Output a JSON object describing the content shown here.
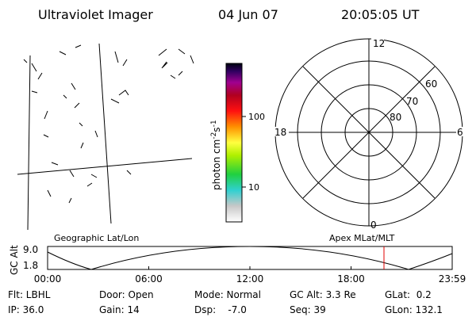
{
  "header": {
    "instrument": "Ultraviolet Imager",
    "date": "04 Jun 07",
    "time": "20:05:05 UT"
  },
  "colorbar": {
    "label": {
      "base": "photon cm",
      "exp1": "-2",
      "unit2": "s",
      "exp2": "-1"
    },
    "ticks": [
      "100",
      "10"
    ]
  },
  "polar": {
    "mlt_labels": {
      "top": "12",
      "bottom": "0",
      "left": "18",
      "right": "6"
    },
    "lat_labels": [
      "60",
      "70",
      "80"
    ]
  },
  "orbit": {
    "left_title": "Geographic Lat/Lon",
    "right_title": "Apex MLat/MLT",
    "axis_label": "GC Alt",
    "alt_ticks": [
      "9.0",
      "1.8"
    ],
    "time_ticks": [
      "00:00",
      "06:00",
      "12:00",
      "18:00",
      "23:59"
    ]
  },
  "footer": {
    "rows": [
      [
        "Flt: LBHL",
        "Door: Open",
        "Mode: Normal",
        "GC Alt: 3.3 Re",
        "GLat:  0.2"
      ],
      [
        "IP: 36.0",
        "Gain: 14",
        "Dsp:    -7.0",
        "Seq: 39",
        "GLon: 132.1"
      ]
    ]
  }
}
